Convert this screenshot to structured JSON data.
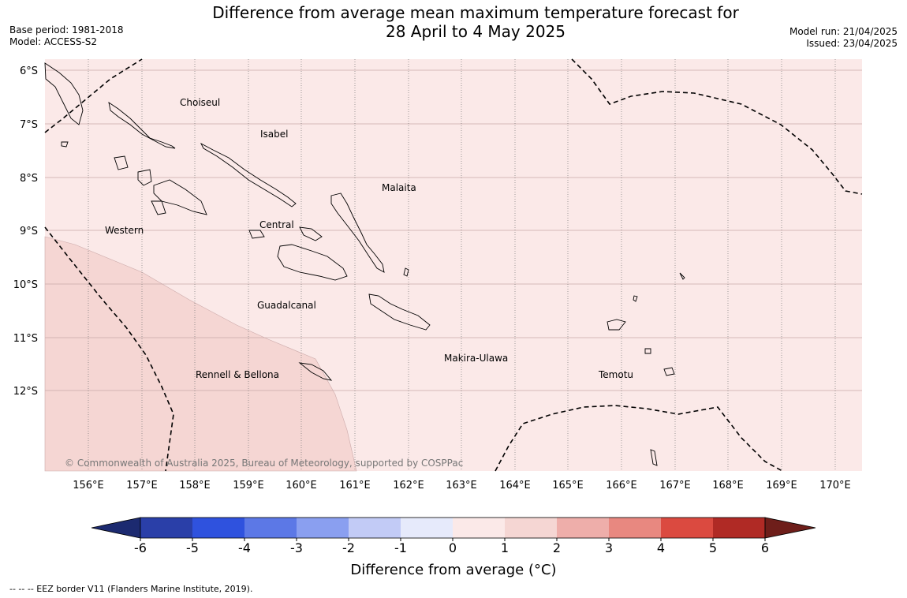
{
  "title": {
    "line1": "Difference from average mean maximum temperature forecast for",
    "line2": "28 April to 4 May 2025"
  },
  "meta_left": {
    "base_period": "Base period: 1981-2018",
    "model": "Model: ACCESS-S2"
  },
  "meta_right": {
    "model_run": "Model run: 21/04/2025",
    "issued": "Issued: 23/04/2025"
  },
  "map": {
    "lat_labels": [
      "6°S",
      "7°S",
      "8°S",
      "9°S",
      "10°S",
      "11°S",
      "12°S"
    ],
    "lon_labels": [
      "156°E",
      "157°E",
      "158°E",
      "159°E",
      "160°E",
      "161°E",
      "162°E",
      "163°E",
      "164°E",
      "165°E",
      "166°E",
      "167°E",
      "168°E",
      "169°E",
      "170°E"
    ],
    "places": [
      {
        "name": "Choiseul"
      },
      {
        "name": "Isabel"
      },
      {
        "name": "Malaita"
      },
      {
        "name": "Western"
      },
      {
        "name": "Central"
      },
      {
        "name": "Guadalcanal"
      },
      {
        "name": "Makira-Ulawa"
      },
      {
        "name": "Rennell & Bellona"
      },
      {
        "name": "Temotu"
      }
    ],
    "copyright": "© Commonwealth of Australia 2025, Bureau of Meteorology, supported by COSPPac",
    "background_category_color": "#fbe9e8",
    "warm_category_color": "#f5d6d3"
  },
  "colorbar": {
    "ticks": [
      "-6",
      "-5",
      "-4",
      "-3",
      "-2",
      "-1",
      "0",
      "1",
      "2",
      "3",
      "4",
      "5",
      "6"
    ],
    "colors": [
      "#2a3fa8",
      "#2f52de",
      "#5c78e6",
      "#8a9ff0",
      "#c2cbf6",
      "#e6eafb",
      "#fbe9e8",
      "#f5d6d3",
      "#eeaeaa",
      "#e88880",
      "#db4a40",
      "#b02a25"
    ],
    "under_color": "#1c2a70",
    "over_color": "#6e1e1a",
    "label": "Difference from average (°C)"
  },
  "footnote": "--  --  -- EEZ border V11 (Flanders Marine Institute, 2019)."
}
